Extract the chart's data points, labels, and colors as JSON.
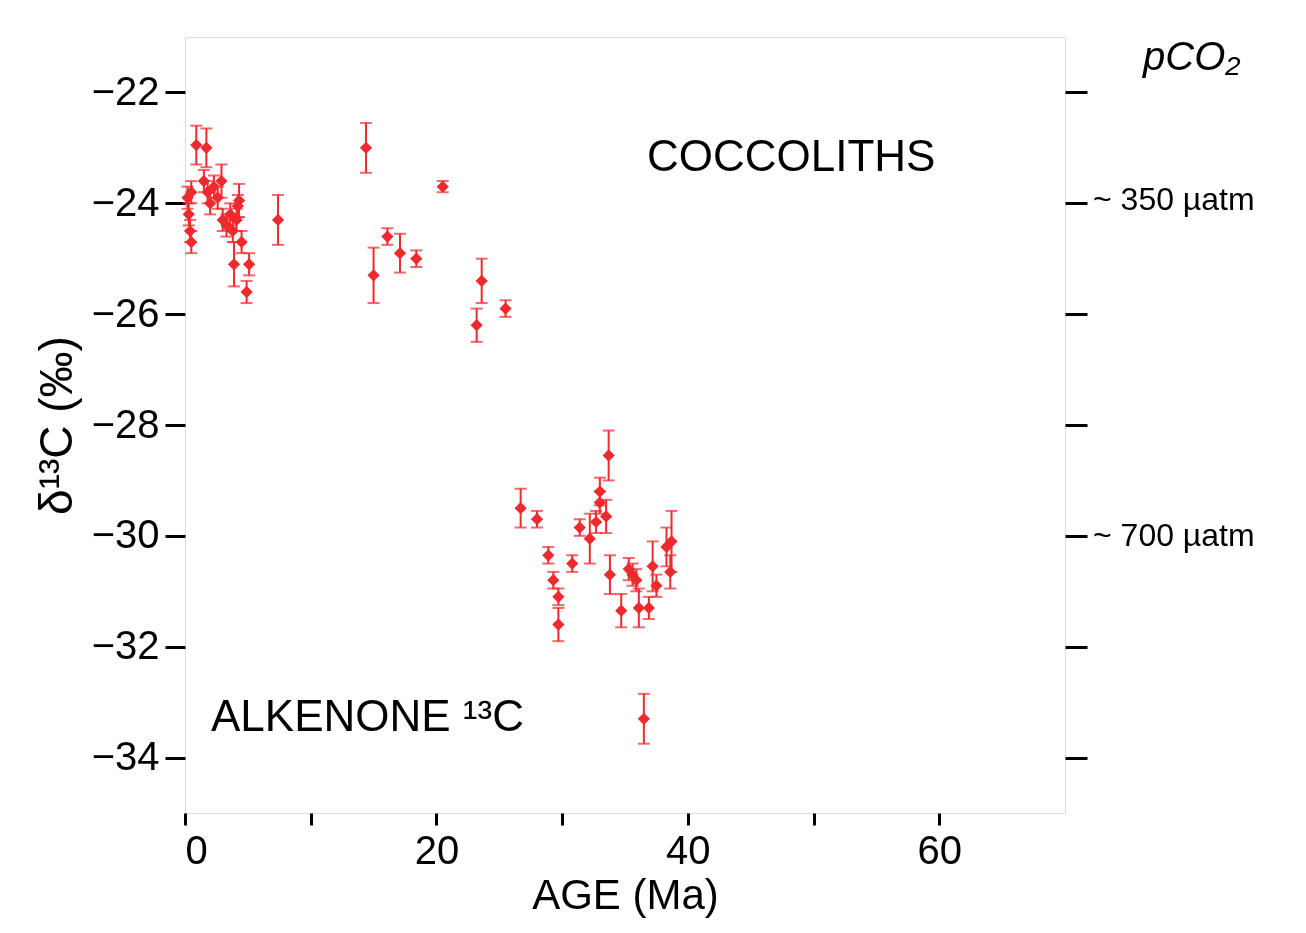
{
  "chart_data": {
    "type": "scatter",
    "xlabel": "AGE (Ma)",
    "ylabel": "δ¹³C (‰)",
    "y2label": "pCO₂",
    "annotations": [
      "COCCOLITHS",
      "ALKENONE ¹³C",
      "~ 350 µatm",
      "~ 700 µatm"
    ],
    "xlim": [
      0,
      70
    ],
    "xticks": [
      0,
      {
        "value": 10,
        "label": null
      },
      20,
      {
        "value": 30,
        "label": null
      },
      40,
      {
        "value": 50,
        "label": null
      },
      60
    ],
    "ylim": [
      -35,
      -21
    ],
    "yticks": [
      -22,
      -24,
      -26,
      -28,
      -30,
      -32,
      -34
    ],
    "marker": "diamond",
    "grid": false,
    "series": [
      {
        "color": "#ee2a2e",
        "x": [
          0.2,
          0.3,
          0.4,
          0.5,
          0.5,
          0.9,
          1.7,
          1.5,
          1.8,
          2.0,
          2.3,
          2.6,
          2.9,
          3.0,
          3.3,
          3.6,
          3.8,
          4.1,
          4.2,
          4.3,
          3.9,
          5.1,
          4.9,
          7.4,
          4.5,
          14.4,
          20.5,
          16.1,
          15.0,
          17.1,
          18.4,
          23.6,
          23.2,
          25.5,
          26.7,
          28.0,
          28.9,
          29.3,
          29.7,
          29.7,
          30.8,
          31.4,
          32.2,
          32.7,
          33.0,
          33.0,
          33.5,
          33.7,
          33.8,
          34.7,
          35.3,
          35.6,
          35.9,
          36.1,
          36.9,
          37.2,
          37.5,
          38.3,
          38.7,
          38.6,
          36.5
        ],
        "values": [
          -23.9,
          -24.2,
          -24.5,
          -24.7,
          -23.8,
          -22.95,
          -23.0,
          -23.6,
          -23.8,
          -24.0,
          -23.7,
          -23.9,
          -23.6,
          -24.3,
          -24.4,
          -24.2,
          -24.5,
          -24.3,
          -24.05,
          -23.95,
          -25.1,
          -25.1,
          -25.6,
          -24.3,
          -24.7,
          -23.0,
          -23.7,
          -24.6,
          -25.3,
          -24.9,
          -25.0,
          -25.4,
          -26.2,
          -25.9,
          -29.5,
          -29.7,
          -30.35,
          -30.8,
          -31.1,
          -31.6,
          -30.5,
          -29.85,
          -30.05,
          -29.75,
          -29.2,
          -29.4,
          -29.65,
          -28.55,
          -30.7,
          -31.35,
          -30.6,
          -30.7,
          -30.8,
          -31.3,
          -31.3,
          -30.55,
          -30.9,
          -30.2,
          -30.1,
          -30.65,
          -33.3
        ],
        "errors": [
          0.2,
          0.2,
          0.2,
          0.2,
          0.2,
          0.35,
          0.35,
          0.2,
          0.2,
          0.2,
          0.2,
          0.2,
          0.3,
          0.2,
          0.2,
          0.2,
          0.2,
          0.2,
          0.2,
          0.3,
          0.4,
          0.2,
          0.2,
          0.45,
          0.2,
          0.45,
          0.1,
          0.15,
          0.5,
          0.35,
          0.15,
          0.4,
          0.3,
          0.15,
          0.35,
          0.15,
          0.15,
          0.15,
          0.15,
          0.3,
          0.15,
          0.15,
          0.45,
          0.2,
          0.25,
          0.2,
          0.3,
          0.45,
          0.35,
          0.3,
          0.2,
          0.2,
          0.2,
          0.35,
          0.2,
          0.45,
          0.2,
          0.35,
          0.55,
          0.3,
          0.45
        ]
      }
    ]
  }
}
